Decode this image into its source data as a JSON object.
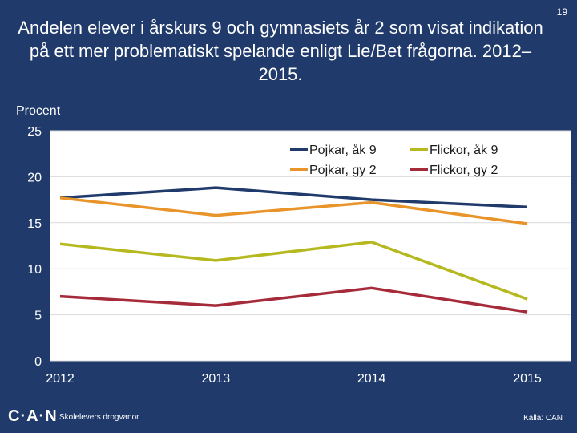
{
  "slide": {
    "page_number": "19",
    "title": "Andelen elever i årskurs 9 och gymnasiets år 2 som visat indikation på ett mer problematiskt spelande enligt Lie/Bet frågorna. 2012–2015.",
    "footer": {
      "logo": "C·A·N",
      "subtitle": "Skolelevers drogvanor",
      "source": "Källa: CAN"
    }
  },
  "colors": {
    "background": "#1f3a6b",
    "plot_background": "#ffffff",
    "grid": "#d9d9d9"
  },
  "chart_data": {
    "type": "line",
    "title": "",
    "ylabel": "Procent",
    "xlabel": "",
    "x": [
      "2012",
      "2013",
      "2014",
      "2015"
    ],
    "ylim": [
      0,
      25
    ],
    "yticks": [
      0,
      5,
      10,
      15,
      20,
      25
    ],
    "grid": true,
    "legend_position": "top-right",
    "series": [
      {
        "name": "Pojkar, åk 9",
        "color": "#1f3a6b",
        "values": [
          17.7,
          18.8,
          17.5,
          16.7
        ]
      },
      {
        "name": "Flickor, åk 9",
        "color": "#b5b81e",
        "values": [
          12.7,
          10.9,
          12.9,
          6.7
        ]
      },
      {
        "name": "Pojkar, gy 2",
        "color": "#e8942a",
        "values": [
          17.7,
          15.8,
          17.2,
          14.9
        ]
      },
      {
        "name": "Flickor, gy 2",
        "color": "#a52a3a",
        "values": [
          7.0,
          6.0,
          7.9,
          5.3
        ]
      }
    ]
  }
}
